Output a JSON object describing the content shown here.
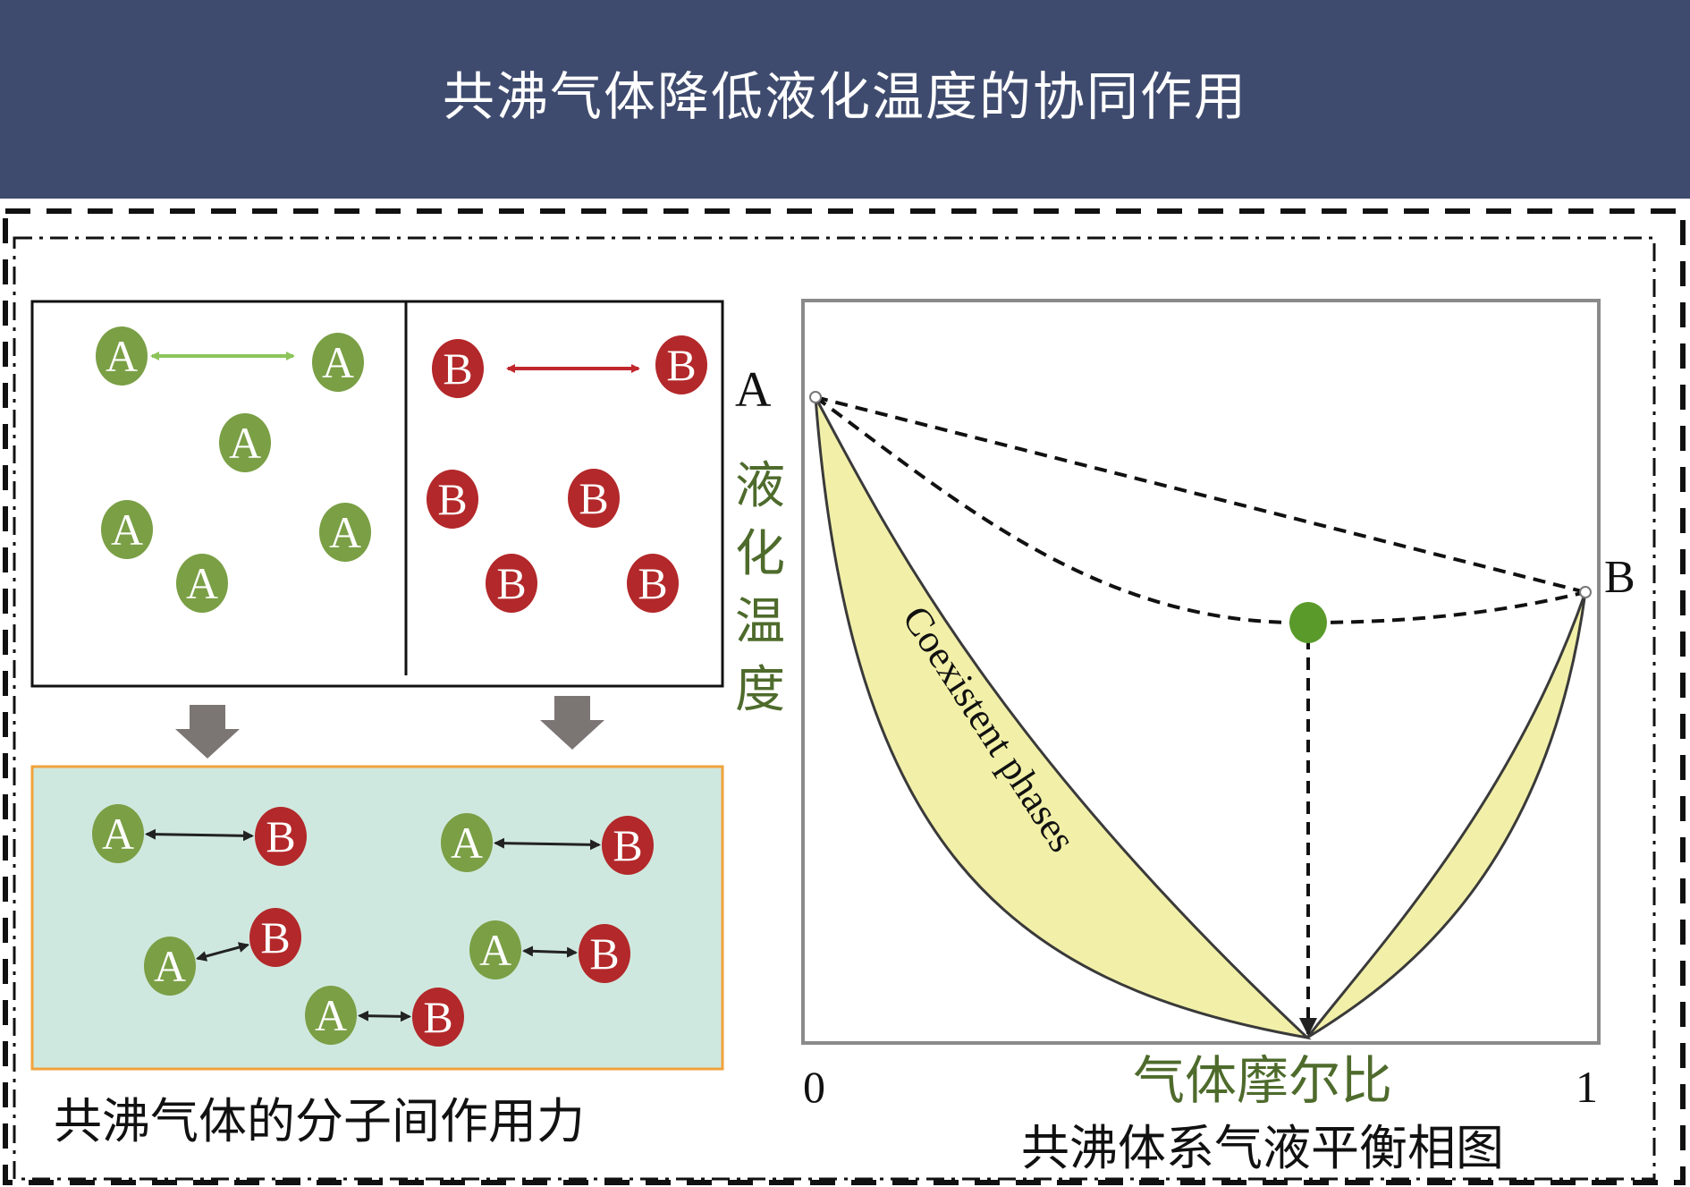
{
  "header": {
    "title": "共沸气体降低液化温度的协同作用"
  },
  "left_panel": {
    "caption": "共沸气体的分子间作用力",
    "molecule_a_label": "A",
    "molecule_b_label": "B",
    "colors": {
      "a": "#7a9f45",
      "b": "#b3282a",
      "arrow_a": "#8cc45a",
      "arrow_b": "#c0272d",
      "mix_bg": "#cfe8df",
      "mix_border": "#f0a23c"
    }
  },
  "right_panel": {
    "caption": "共沸体系气液平衡相图",
    "y_axis_label_chars": [
      "液",
      "化",
      "温",
      "度"
    ],
    "x_axis_label": "气体摩尔比",
    "x_tick_min": "0",
    "x_tick_max": "1",
    "point_a_label": "A",
    "point_b_label": "B",
    "region_label": "Coexistent phases",
    "colors": {
      "region_fill": "#f2f0a8",
      "axis_label": "#4e6b2c",
      "point": "#5a9a2a"
    }
  }
}
